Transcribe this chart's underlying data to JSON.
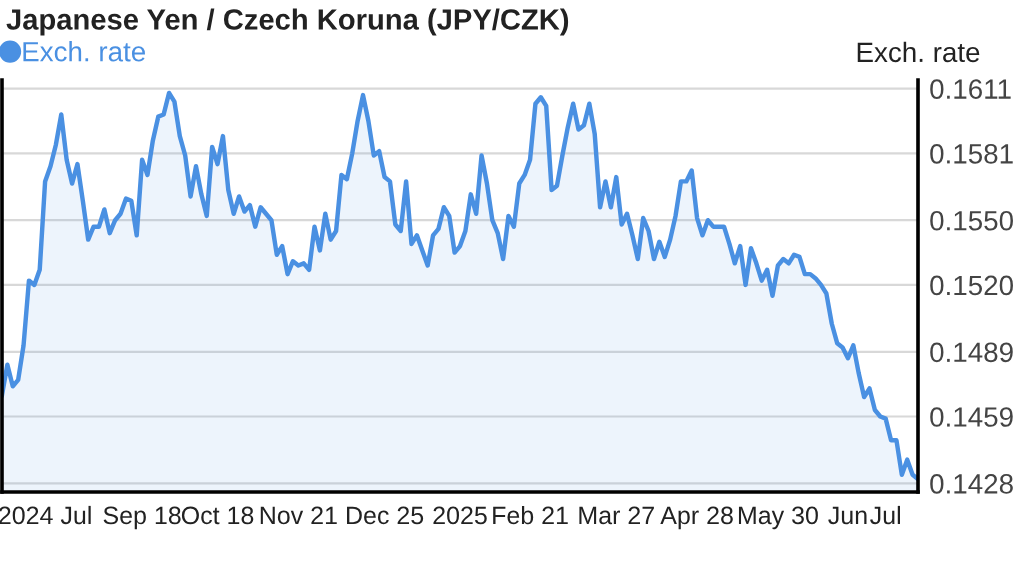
{
  "chart_data": {
    "type": "area",
    "title": "Japanese Yen / Czech Koruna (JPY/CZK)",
    "ylabel": "Exch. rate",
    "categories": [
      null,
      null,
      null,
      null,
      null,
      null,
      null,
      null,
      "2024 Jul",
      null,
      null,
      null,
      null,
      null,
      null,
      null,
      null,
      null,
      null,
      null,
      null,
      null,
      null,
      null,
      null,
      null,
      "Sep 18",
      null,
      null,
      null,
      null,
      null,
      null,
      null,
      null,
      null,
      null,
      null,
      null,
      null,
      "Oct 18",
      null,
      null,
      null,
      null,
      null,
      null,
      null,
      null,
      null,
      null,
      null,
      null,
      null,
      null,
      "Nov 21",
      null,
      null,
      null,
      null,
      null,
      null,
      null,
      null,
      null,
      null,
      null,
      null,
      null,
      null,
      null,
      "Dec 25",
      null,
      null,
      null,
      null,
      null,
      null,
      null,
      null,
      null,
      null,
      null,
      null,
      null,
      "2025",
      null,
      null,
      null,
      null,
      null,
      null,
      null,
      null,
      null,
      null,
      null,
      null,
      "Feb 21",
      null,
      null,
      null,
      null,
      null,
      null,
      null,
      null,
      null,
      null,
      null,
      null,
      null,
      null,
      null,
      "Mar 27",
      null,
      null,
      null,
      null,
      null,
      null,
      null,
      null,
      null,
      null,
      null,
      null,
      null,
      null,
      "Apr 28",
      null,
      null,
      null,
      null,
      null,
      null,
      null,
      null,
      null,
      null,
      null,
      null,
      null,
      null,
      "May 30",
      null,
      null,
      null,
      null,
      null,
      null,
      null,
      null,
      null,
      null,
      null,
      null,
      "Jun",
      null,
      null,
      null,
      null,
      null,
      null,
      "Jul",
      null,
      null,
      null,
      null,
      null,
      null
    ],
    "series": [
      {
        "name": "Exch. rate",
        "color": "#4a90e2",
        "values": [
          0.1469,
          0.1483,
          0.1473,
          0.1476,
          0.1492,
          0.1522,
          0.152,
          0.1527,
          0.1568,
          0.1575,
          0.1585,
          0.1599,
          0.1578,
          0.1567,
          0.1576,
          0.1559,
          0.1541,
          0.1547,
          0.1547,
          0.1555,
          0.1544,
          0.155,
          0.1553,
          0.156,
          0.1559,
          0.1543,
          0.1578,
          0.1571,
          0.1587,
          0.1598,
          0.1599,
          0.1609,
          0.1605,
          0.1589,
          0.158,
          0.1561,
          0.1575,
          0.1562,
          0.1552,
          0.1584,
          0.1576,
          0.1589,
          0.1564,
          0.1553,
          0.1561,
          0.1554,
          0.1557,
          0.1547,
          0.1556,
          0.1553,
          0.155,
          0.1534,
          0.1538,
          0.1525,
          0.1531,
          0.1529,
          0.153,
          0.1527,
          0.1547,
          0.1536,
          0.1553,
          0.1541,
          0.1545,
          0.1571,
          0.1569,
          0.1581,
          0.1596,
          0.1608,
          0.1596,
          0.158,
          0.1582,
          0.157,
          0.1568,
          0.1548,
          0.1545,
          0.1568,
          0.1539,
          0.1543,
          0.1536,
          0.1529,
          0.1543,
          0.1546,
          0.1556,
          0.1552,
          0.1535,
          0.1538,
          0.1545,
          0.1562,
          0.1553,
          0.158,
          0.1567,
          0.155,
          0.1544,
          0.1532,
          0.1552,
          0.1547,
          0.1567,
          0.1571,
          0.1578,
          0.1604,
          0.1607,
          0.1603,
          0.1564,
          0.1566,
          0.158,
          0.1593,
          0.1604,
          0.1592,
          0.1594,
          0.1604,
          0.159,
          0.1556,
          0.1568,
          0.1556,
          0.157,
          0.1548,
          0.1553,
          0.1543,
          0.1532,
          0.1551,
          0.1545,
          0.1532,
          0.154,
          0.1533,
          0.1541,
          0.1552,
          0.1568,
          0.1568,
          0.1573,
          0.1551,
          0.1543,
          0.155,
          0.1547,
          0.1547,
          0.1547,
          0.1539,
          0.153,
          0.1538,
          0.152,
          0.1537,
          0.153,
          0.1522,
          0.1527,
          0.1515,
          0.1529,
          0.1532,
          0.153,
          0.1534,
          0.1533,
          0.1525,
          0.1525,
          0.1523,
          0.152,
          0.1516,
          0.1502,
          0.1493,
          0.1491,
          0.1486,
          0.1492,
          0.1479,
          0.1468,
          0.1472,
          0.1462,
          0.1459,
          0.1458,
          0.1448,
          0.1448,
          0.1432,
          0.1439,
          0.1432,
          0.143
        ]
      }
    ],
    "ylim": [
      0.1424,
      0.1615
    ],
    "yticks": [
      {
        "value": 0.1428,
        "label": "0.1428"
      },
      {
        "value": 0.1459,
        "label": "0.1459"
      },
      {
        "value": 0.1489,
        "label": "0.1489"
      },
      {
        "value": 0.152,
        "label": "0.1520"
      },
      {
        "value": 0.155,
        "label": "0.1550"
      },
      {
        "value": 0.1581,
        "label": "0.1581"
      },
      {
        "value": 0.1611,
        "label": "0.1611"
      }
    ],
    "grid": "y",
    "legend": "top left"
  }
}
